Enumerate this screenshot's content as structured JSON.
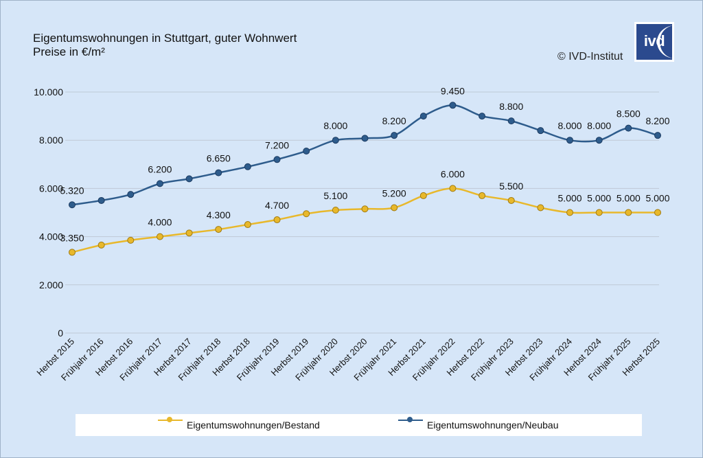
{
  "title_line1": "Eigentumswohnungen in Stuttgart, guter Wohnwert",
  "title_line2": "Preise in €/m²",
  "credit": "© IVD-Institut",
  "logo_text": "ivd",
  "colors": {
    "bestand": "#e8b82b",
    "neubau": "#2e5c8c",
    "grid": "#bfc9d6"
  },
  "chart_data": {
    "type": "line",
    "categories": [
      "Herbst 2015",
      "Frühjahr 2016",
      "Herbst 2016",
      "Frühjahr 2017",
      "Herbst 2017",
      "Frühjahr 2018",
      "Herbst 2018",
      "Frühjahr 2019",
      "Herbst 2019",
      "Frühjahr 2020",
      "Herbst 2020",
      "Frühjahr 2021",
      "Herbst 2021",
      "Frühjahr 2022",
      "Herbst 2022",
      "Frühjahr 2023",
      "Herbst 2023",
      "Frühjahr 2024",
      "Herbst 2024",
      "Frühjahr 2025",
      "Herbst 2025"
    ],
    "ylim": [
      0,
      10000
    ],
    "yticks": [
      0,
      2000,
      4000,
      6000,
      8000,
      10000
    ],
    "ytick_labels": [
      "0",
      "2.000",
      "4.000",
      "6.000",
      "8.000",
      "10.000"
    ],
    "grid": true,
    "legend_position": "bottom",
    "series": [
      {
        "name": "Eigentumswohnungen/Bestand",
        "color": "#e8b82b",
        "values": [
          3350,
          3650,
          3850,
          4000,
          4150,
          4300,
          4500,
          4700,
          4950,
          5100,
          5150,
          5200,
          5700,
          6000,
          5700,
          5500,
          5200,
          5000,
          5000,
          5000,
          5000
        ],
        "labels": [
          "3.350",
          "",
          "",
          "4.000",
          "",
          "4.300",
          "",
          "4.700",
          "",
          "5.100",
          "",
          "5.200",
          "",
          "6.000",
          "",
          "5.500",
          "",
          "5.000",
          "5.000",
          "5.000",
          "5.000"
        ]
      },
      {
        "name": "Eigentumswohnungen/Neubau",
        "color": "#2e5c8c",
        "values": [
          5320,
          5500,
          5750,
          6200,
          6400,
          6650,
          6900,
          7200,
          7550,
          8000,
          8080,
          8200,
          9000,
          9450,
          9000,
          8800,
          8400,
          8000,
          8000,
          8500,
          8200
        ],
        "labels": [
          "5.320",
          "",
          "",
          "6.200",
          "",
          "6.650",
          "",
          "7.200",
          "",
          "8.000",
          "",
          "8.200",
          "",
          "9.450",
          "",
          "8.800",
          "",
          "8.000",
          "8.000",
          "8.500",
          "8.200"
        ]
      }
    ]
  }
}
